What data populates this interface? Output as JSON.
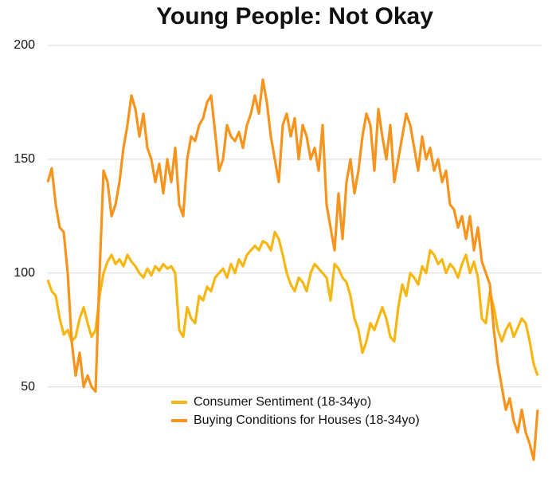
{
  "chart_data": {
    "type": "line",
    "title": "Young People: Not Okay",
    "ylim": [
      10,
      205
    ],
    "yticks": [
      50,
      100,
      150,
      200
    ],
    "grid": true,
    "legend": "bottom",
    "series": [
      {
        "name": "Consumer Sentiment (18-34yo)",
        "color": "#f6b713",
        "values": [
          97,
          92,
          90,
          80,
          73,
          75,
          70,
          72,
          80,
          85,
          78,
          72,
          75,
          90,
          100,
          105,
          108,
          104,
          106,
          103,
          108,
          105,
          103,
          100,
          98,
          102,
          99,
          103,
          101,
          104,
          102,
          103,
          100,
          75,
          72,
          85,
          80,
          78,
          90,
          88,
          94,
          92,
          98,
          100,
          102,
          98,
          104,
          100,
          106,
          103,
          108,
          110,
          112,
          110,
          114,
          113,
          110,
          118,
          115,
          108,
          100,
          95,
          92,
          98,
          96,
          92,
          100,
          104,
          102,
          100,
          98,
          88,
          104,
          102,
          98,
          96,
          90,
          80,
          75,
          65,
          70,
          78,
          75,
          80,
          85,
          80,
          72,
          70,
          85,
          95,
          90,
          100,
          98,
          95,
          103,
          100,
          110,
          108,
          104,
          106,
          100,
          104,
          102,
          98,
          104,
          108,
          100,
          105,
          98,
          80,
          78,
          92,
          85,
          75,
          70,
          75,
          78,
          72,
          76,
          80,
          78,
          70,
          60,
          55
        ]
      },
      {
        "name": "Buying Conditions for Houses (18-34yo)",
        "color": "#f7941d",
        "values": [
          140,
          146,
          130,
          120,
          118,
          100,
          70,
          55,
          65,
          50,
          55,
          50,
          48,
          100,
          145,
          140,
          125,
          130,
          140,
          155,
          165,
          178,
          172,
          160,
          170,
          155,
          150,
          140,
          148,
          135,
          150,
          140,
          155,
          130,
          125,
          150,
          160,
          158,
          165,
          168,
          175,
          178,
          162,
          145,
          150,
          165,
          160,
          158,
          162,
          155,
          165,
          170,
          178,
          170,
          185,
          175,
          160,
          150,
          140,
          165,
          170,
          160,
          168,
          150,
          165,
          160,
          150,
          155,
          145,
          165,
          130,
          120,
          110,
          135,
          115,
          140,
          150,
          135,
          145,
          160,
          170,
          165,
          145,
          172,
          160,
          150,
          165,
          140,
          150,
          160,
          170,
          165,
          155,
          145,
          160,
          150,
          155,
          145,
          150,
          140,
          145,
          130,
          128,
          120,
          125,
          115,
          125,
          110,
          120,
          105,
          100,
          95,
          75,
          60,
          50,
          40,
          45,
          35,
          30,
          40,
          30,
          25,
          18,
          40
        ]
      }
    ]
  }
}
